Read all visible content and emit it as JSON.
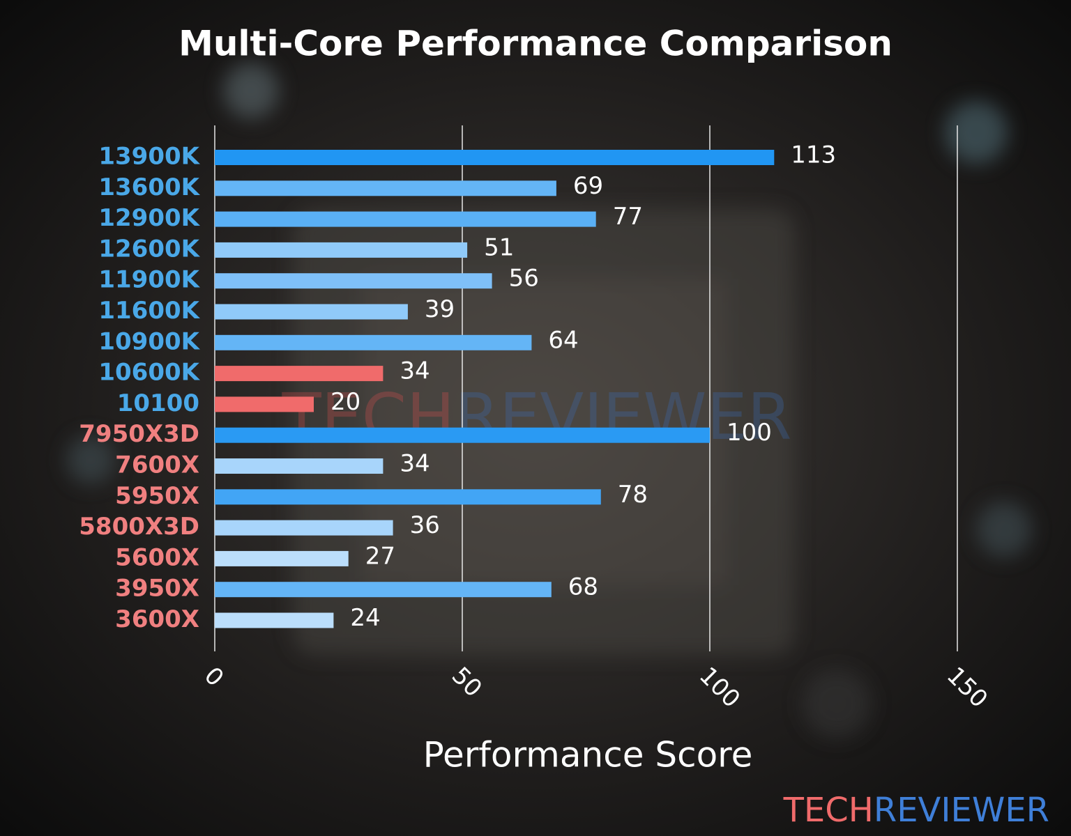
{
  "chart_data": {
    "type": "barh",
    "title": "Multi-Core Performance Comparison",
    "x_label": "Performance Score",
    "categories": [
      "13900K",
      "13600K",
      "12900K",
      "12600K",
      "11900K",
      "11600K",
      "10900K",
      "10600K",
      "10100",
      "7950X3D",
      "7600X",
      "5950X",
      "5800X3D",
      "5600X",
      "3950X",
      "3600X"
    ],
    "values": [
      113,
      69,
      77,
      51,
      56,
      39,
      64,
      34,
      20,
      100,
      34,
      78,
      36,
      27,
      68,
      24
    ],
    "colors": [
      "#2196f3",
      "#64b5f6",
      "#5ab0f5",
      "#90caf9",
      "#7fc0f8",
      "#90caf9",
      "#64b5f6",
      "#f06b6b",
      "#f06b6b",
      "#2a9af3",
      "#a8d5fb",
      "#42a5f5",
      "#a8d5fb",
      "#bbdefb",
      "#64b5f6",
      "#bbdefb"
    ],
    "label_colors": [
      "#4aa8e8",
      "#4aa8e8",
      "#4aa8e8",
      "#4aa8e8",
      "#4aa8e8",
      "#4aa8e8",
      "#4aa8e8",
      "#4aa8e8",
      "#4aa8e8",
      "#f08080",
      "#f08080",
      "#f08080",
      "#f08080",
      "#f08080",
      "#f08080",
      "#f08080"
    ],
    "xlim": [
      0,
      150
    ],
    "xticks": [
      0,
      50,
      100,
      150
    ],
    "grid": true,
    "watermark": [
      "TECH",
      "REVIEWER"
    ]
  }
}
